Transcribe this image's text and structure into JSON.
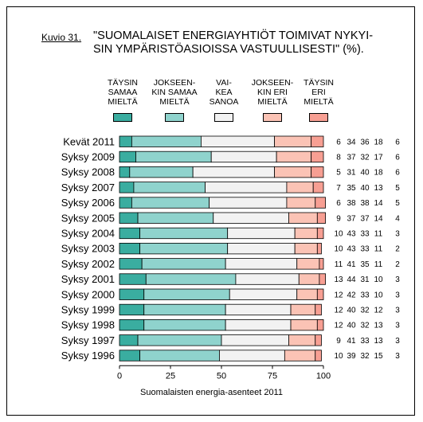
{
  "figure": {
    "label": "Kuvio 31.",
    "title_line1": "\"SUOMALAISET ENERGIAYHTIÖT TOIMIVAT NYKYI-",
    "title_line2": "SIN YMPÄRISTÖASIOISSA VASTUULLISESTI\" (%).",
    "footer": "Suomalaisten energia-asenteet 2011"
  },
  "legend": [
    {
      "lines": [
        "TÄYSIN",
        "SAMAA",
        "MIELTÄ"
      ],
      "color": "#3aada0"
    },
    {
      "lines": [
        "JOKSEEN-",
        "KIN SAMAA",
        "MIELTÄ"
      ],
      "color": "#8fd3cd"
    },
    {
      "lines": [
        "VAI-",
        "KEA",
        "SANOA"
      ],
      "color": "#f2f2f2"
    },
    {
      "lines": [
        "JOKSEEN-",
        "KIN ERI",
        "MIELTÄ"
      ],
      "color": "#fbc3b5"
    },
    {
      "lines": [
        "TÄYSIN",
        "ERI",
        "MIELTÄ"
      ],
      "color": "#f79f93"
    }
  ],
  "chart_data": {
    "type": "bar",
    "orientation": "horizontal",
    "stacked": true,
    "categories": [
      "Kevät 2011",
      "Syksy 2009",
      "Syksy 2008",
      "Syksy 2007",
      "Syksy 2006",
      "Syksy 2005",
      "Syksy 2004",
      "Syksy 2003",
      "Syksy 2002",
      "Syksy 2001",
      "Syksy 2000",
      "Syksy 1999",
      "Syksy 1998",
      "Syksy 1997",
      "Syksy 1996"
    ],
    "series": [
      {
        "name": "TÄYSIN SAMAA MIELTÄ",
        "values": [
          6,
          8,
          5,
          7,
          6,
          9,
          10,
          10,
          11,
          13,
          12,
          12,
          12,
          9,
          10
        ]
      },
      {
        "name": "JOKSEENKIN SAMAA MIELTÄ",
        "values": [
          34,
          37,
          31,
          35,
          38,
          37,
          43,
          43,
          41,
          44,
          42,
          40,
          40,
          41,
          39
        ]
      },
      {
        "name": "VAIKEA SANOA",
        "values": [
          36,
          32,
          40,
          40,
          38,
          37,
          33,
          33,
          35,
          31,
          33,
          32,
          32,
          33,
          32
        ]
      },
      {
        "name": "JOKSEENKIN ERI MIELTÄ",
        "values": [
          18,
          17,
          18,
          13,
          14,
          14,
          11,
          11,
          11,
          10,
          10,
          12,
          13,
          13,
          15
        ]
      },
      {
        "name": "TÄYSIN ERI MIELTÄ",
        "values": [
          6,
          6,
          6,
          5,
          5,
          4,
          3,
          2,
          2,
          3,
          3,
          3,
          3,
          3,
          3
        ]
      }
    ],
    "xlim": [
      0,
      100
    ],
    "xticks": [
      0,
      25,
      50,
      75,
      100
    ],
    "grid": false,
    "legend_position": "top"
  }
}
